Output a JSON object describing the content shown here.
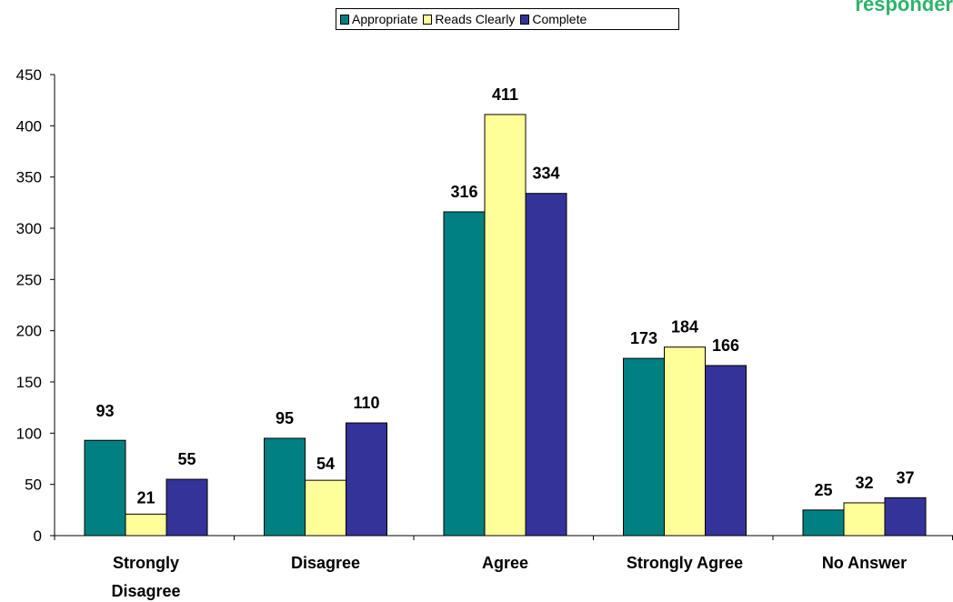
{
  "corner_text": "responder",
  "colors": {
    "appropriate": "#008080",
    "reads_clearly": "#ffff99",
    "complete": "#333399"
  },
  "chart_data": {
    "type": "bar",
    "categories": [
      [
        "Strongly",
        "Disagree"
      ],
      [
        "Disagree"
      ],
      [
        "Agree"
      ],
      [
        "Strongly Agree"
      ],
      [
        "No Answer"
      ]
    ],
    "series": [
      {
        "name": "Appropriate",
        "values": [
          93,
          95,
          316,
          173,
          25
        ]
      },
      {
        "name": "Reads Clearly",
        "values": [
          21,
          54,
          411,
          184,
          32
        ]
      },
      {
        "name": "Complete",
        "values": [
          55,
          110,
          334,
          166,
          37
        ]
      }
    ],
    "ylim": [
      0,
      450
    ],
    "yticks": [
      0,
      50,
      100,
      150,
      200,
      250,
      300,
      350,
      400,
      450
    ],
    "legend_position": "top-center",
    "grid": false,
    "data_labels": true
  }
}
